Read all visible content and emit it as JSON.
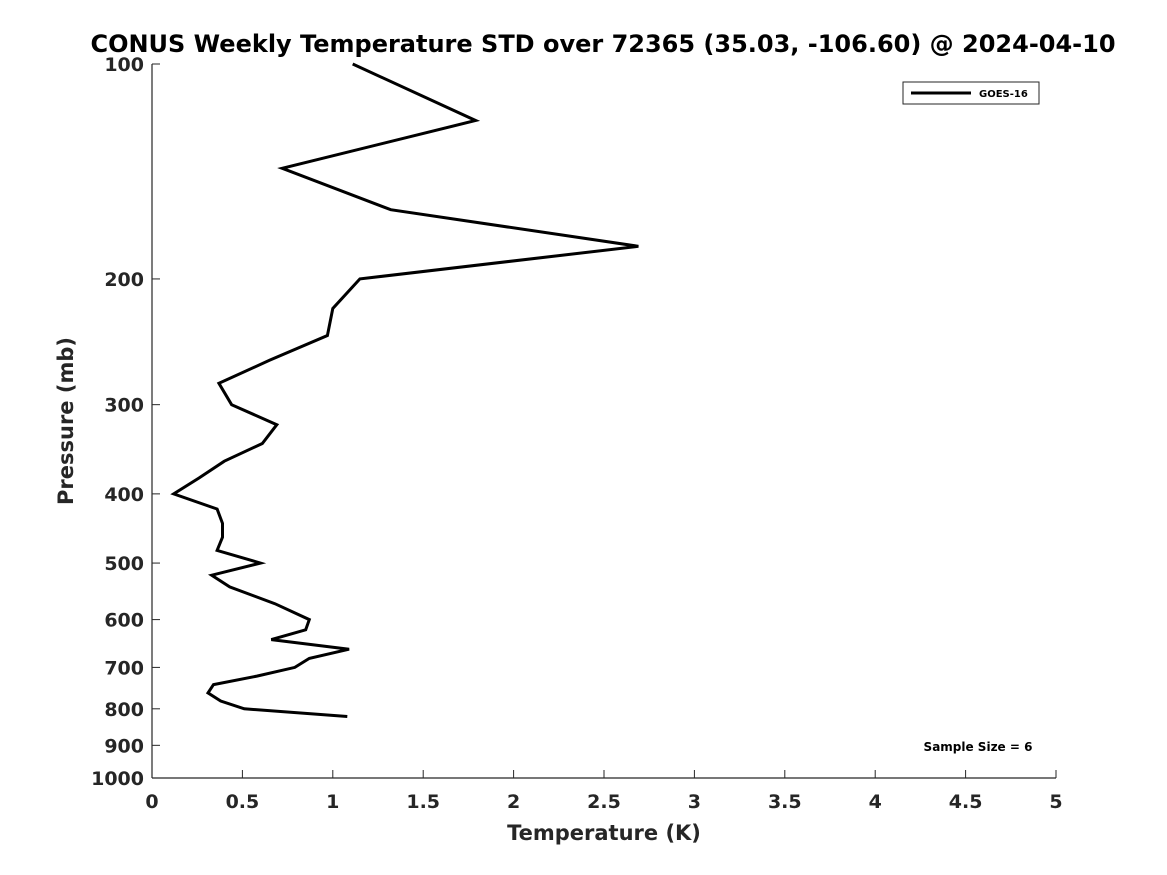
{
  "chart_data": {
    "type": "line",
    "title": "CONUS Weekly Temperature STD over 72365 (35.03, -106.60) @ 2024-04-10",
    "xlabel": "Temperature (K)",
    "ylabel": "Pressure (mb)",
    "xlim": [
      0,
      5
    ],
    "ylim": [
      100,
      1000
    ],
    "yscale": "log",
    "yreversed": true,
    "grid": false,
    "legend_position": "top-right",
    "xticks": [
      0,
      0.5,
      1,
      1.5,
      2,
      2.5,
      3,
      3.5,
      4,
      4.5,
      5
    ],
    "xtick_labels": [
      "0",
      "0.5",
      "1",
      "1.5",
      "2",
      "2.5",
      "3",
      "3.5",
      "4",
      "4.5",
      "5"
    ],
    "yticks": [
      100,
      200,
      300,
      400,
      500,
      600,
      700,
      800,
      900,
      1000
    ],
    "ytick_labels": [
      "100",
      "200",
      "300",
      "400",
      "500",
      "600",
      "700",
      "800",
      "900",
      "1000"
    ],
    "series": [
      {
        "name": "GOES-16",
        "color": "#000000",
        "points": [
          {
            "x": 1.11,
            "p": 100
          },
          {
            "x": 1.79,
            "p": 120
          },
          {
            "x": 0.72,
            "p": 140
          },
          {
            "x": 1.32,
            "p": 160
          },
          {
            "x": 2.69,
            "p": 180
          },
          {
            "x": 1.15,
            "p": 200
          },
          {
            "x": 1.0,
            "p": 220
          },
          {
            "x": 0.97,
            "p": 240
          },
          {
            "x": 0.65,
            "p": 260
          },
          {
            "x": 0.37,
            "p": 280
          },
          {
            "x": 0.44,
            "p": 300
          },
          {
            "x": 0.69,
            "p": 320
          },
          {
            "x": 0.61,
            "p": 340
          },
          {
            "x": 0.4,
            "p": 360
          },
          {
            "x": 0.26,
            "p": 380
          },
          {
            "x": 0.12,
            "p": 400
          },
          {
            "x": 0.36,
            "p": 420
          },
          {
            "x": 0.39,
            "p": 440
          },
          {
            "x": 0.39,
            "p": 460
          },
          {
            "x": 0.36,
            "p": 480
          },
          {
            "x": 0.6,
            "p": 500
          },
          {
            "x": 0.33,
            "p": 520
          },
          {
            "x": 0.43,
            "p": 540
          },
          {
            "x": 0.68,
            "p": 570
          },
          {
            "x": 0.87,
            "p": 600
          },
          {
            "x": 0.85,
            "p": 620
          },
          {
            "x": 0.66,
            "p": 640
          },
          {
            "x": 1.09,
            "p": 660
          },
          {
            "x": 0.87,
            "p": 680
          },
          {
            "x": 0.79,
            "p": 700
          },
          {
            "x": 0.58,
            "p": 720
          },
          {
            "x": 0.34,
            "p": 740
          },
          {
            "x": 0.31,
            "p": 760
          },
          {
            "x": 0.38,
            "p": 780
          },
          {
            "x": 0.51,
            "p": 800
          },
          {
            "x": 1.08,
            "p": 820
          }
        ]
      }
    ],
    "annotations": [
      {
        "text": "Sample Size = 6"
      }
    ]
  }
}
